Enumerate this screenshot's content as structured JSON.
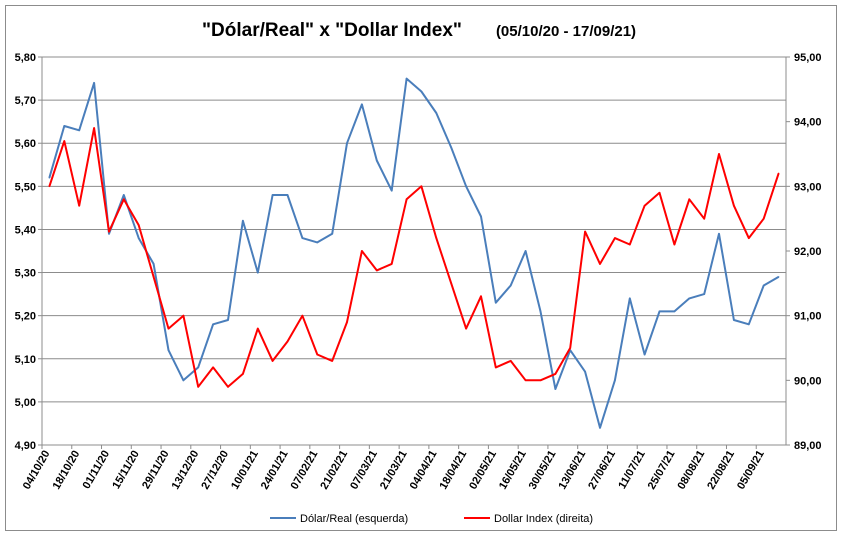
{
  "chart_data": {
    "type": "line",
    "title": "\"Dólar/Real\" x \"Dollar Index\"",
    "subtitle": "(05/10/20 - 17/09/21)",
    "x_tick_labels": [
      "04/10/20",
      "18/10/20",
      "01/11/20",
      "15/11/20",
      "29/11/20",
      "13/12/20",
      "27/12/20",
      "10/01/21",
      "24/01/21",
      "07/02/21",
      "21/02/21",
      "07/03/21",
      "21/03/21",
      "04/04/21",
      "18/04/21",
      "02/05/21",
      "16/05/21",
      "30/05/21",
      "13/06/21",
      "27/06/21",
      "11/07/21",
      "25/07/21",
      "08/08/21",
      "22/08/21",
      "05/09/21"
    ],
    "y_left": {
      "min": 4.9,
      "max": 5.8,
      "step": 0.1,
      "tick_labels": [
        "4,90",
        "5,00",
        "5,10",
        "5,20",
        "5,30",
        "5,40",
        "5,50",
        "5,60",
        "5,70",
        "5,80"
      ]
    },
    "y_right": {
      "min": 89.0,
      "max": 95.0,
      "step": 1.0,
      "tick_labels": [
        "89,00",
        "90,00",
        "91,00",
        "92,00",
        "93,00",
        "94,00",
        "95,00"
      ]
    },
    "series": [
      {
        "name": "Dólar/Real (esquerda)",
        "axis": "left",
        "color": "#4a7ebb",
        "values": [
          5.52,
          5.64,
          5.63,
          5.74,
          5.39,
          5.48,
          5.38,
          5.32,
          5.12,
          5.05,
          5.08,
          5.18,
          5.19,
          5.42,
          5.3,
          5.48,
          5.48,
          5.38,
          5.37,
          5.39,
          5.6,
          5.69,
          5.56,
          5.49,
          5.75,
          5.72,
          5.67,
          5.59,
          5.5,
          5.43,
          5.23,
          5.27,
          5.35,
          5.21,
          5.03,
          5.12,
          5.07,
          4.94,
          5.05,
          5.24,
          5.11,
          5.21,
          5.21,
          5.24,
          5.25,
          5.39,
          5.19,
          5.18,
          5.27,
          5.29
        ]
      },
      {
        "name": "Dollar Index (direita)",
        "axis": "right",
        "color": "#ff0000",
        "values": [
          93.0,
          93.7,
          92.7,
          93.9,
          92.3,
          92.8,
          92.4,
          91.6,
          90.8,
          91.0,
          89.9,
          90.2,
          89.9,
          90.1,
          90.8,
          90.3,
          90.6,
          91.0,
          90.4,
          90.3,
          90.9,
          92.0,
          91.7,
          91.8,
          92.8,
          93.0,
          92.2,
          91.5,
          90.8,
          91.3,
          90.2,
          90.3,
          90.0,
          90.0,
          90.1,
          90.5,
          92.3,
          91.8,
          92.2,
          92.1,
          92.7,
          92.9,
          92.1,
          92.8,
          92.5,
          93.5,
          92.7,
          92.2,
          92.5,
          93.2
        ]
      }
    ],
    "legend_position": "bottom",
    "grid": "horizontal"
  }
}
